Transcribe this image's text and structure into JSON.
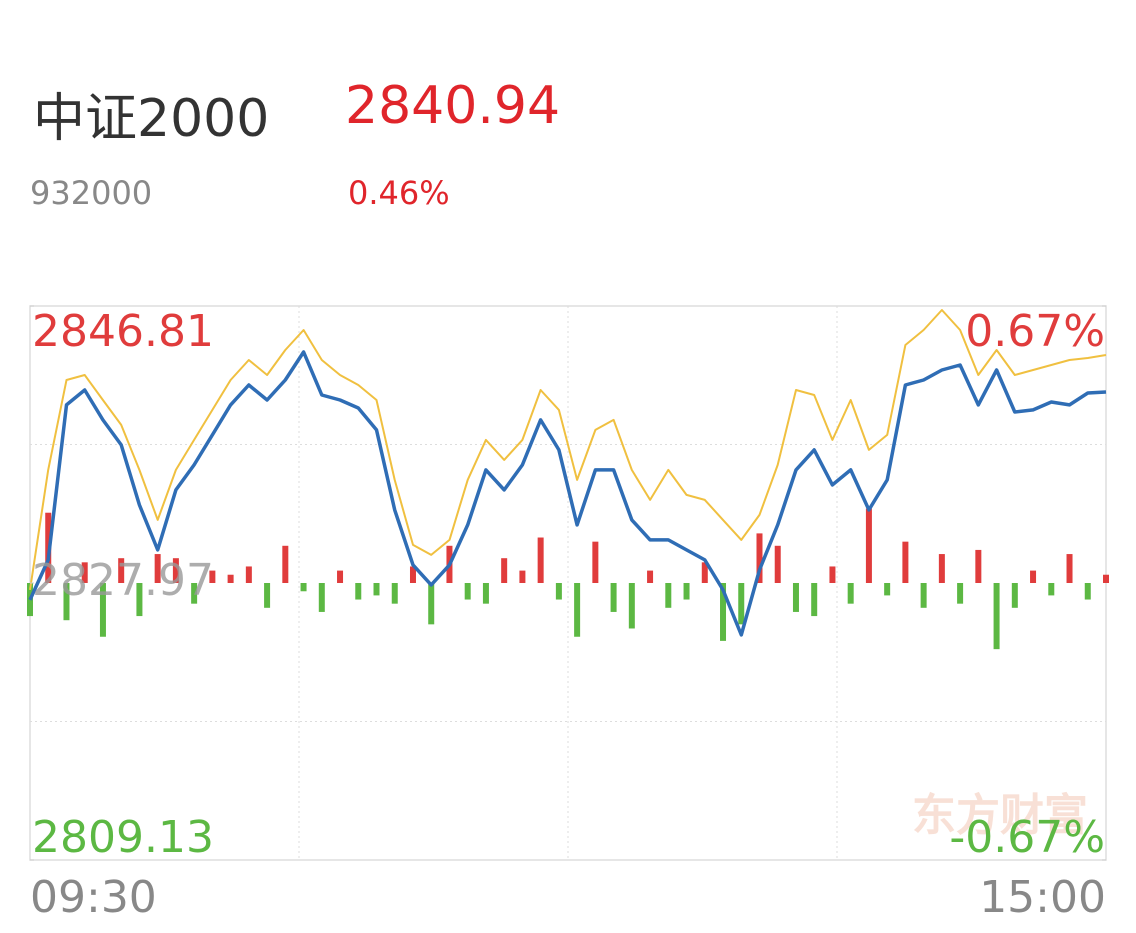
{
  "header": {
    "name": "中证2000",
    "price": "2840.94",
    "code": "932000",
    "change": "0.46%"
  },
  "watermark": "东方财富",
  "chart_data": {
    "type": "line",
    "categories": [
      "09:30",
      null,
      null,
      null,
      null,
      null,
      null,
      null,
      null,
      null,
      null,
      null,
      null,
      null,
      null,
      null,
      null,
      null,
      null,
      null,
      null,
      null,
      null,
      null,
      null,
      null,
      null,
      null,
      null,
      null,
      null,
      null,
      null,
      null,
      null,
      null,
      null,
      null,
      null,
      null,
      null,
      null,
      null,
      null,
      null,
      null,
      null,
      null,
      null,
      null,
      null,
      null,
      null,
      null,
      null,
      null,
      null,
      null,
      null,
      "15:00"
    ],
    "ylim": [
      2809.13,
      2846.81
    ],
    "yticks": [
      2809.13,
      2827.97,
      2846.81
    ],
    "y2lim": [
      -0.67,
      0.67
    ],
    "y2ticks": [
      {
        "value": -0.67,
        "label": "-0.67%"
      },
      {
        "value": 0.67,
        "label": "0.67%"
      }
    ],
    "up_color": "#e03c3c",
    "down_color": "#5cb843",
    "flat_color": "#999999",
    "series": [
      {
        "color": "#f0c040",
        "values": [
          2827.5,
          2835.66,
          2841.78,
          2842.12,
          2840.42,
          2838.72,
          2835.66,
          2832.26,
          2835.66,
          2837.7,
          2839.74,
          2841.78,
          2843.14,
          2842.12,
          2843.82,
          2845.18,
          2843.14,
          2842.12,
          2841.44,
          2840.42,
          2834.98,
          2830.56,
          2829.88,
          2830.9,
          2834.98,
          2837.7,
          2836.34,
          2837.7,
          2841.1,
          2839.74,
          2834.98,
          2838.38,
          2839.06,
          2835.66,
          2833.62,
          2835.66,
          2833.96,
          2833.62,
          2832.26,
          2830.9,
          2832.6,
          2836.0,
          2841.1,
          2840.76,
          2837.7,
          2840.42,
          2837.02,
          2838.04,
          2844.16,
          2845.18,
          2846.54,
          2845.18,
          2842.12,
          2843.82,
          2842.12,
          2842.46,
          2842.8,
          2843.14,
          2843.27,
          2843.48
        ]
      },
      {
        "color": "#2f6db5",
        "values": [
          2826.82,
          2829.54,
          2840.08,
          2841.1,
          2839.06,
          2837.36,
          2833.28,
          2830.22,
          2834.3,
          2836.0,
          2838.04,
          2840.08,
          2841.44,
          2840.42,
          2841.78,
          2843.68,
          2840.76,
          2840.42,
          2839.87,
          2838.38,
          2832.94,
          2829.2,
          2827.84,
          2829.2,
          2831.92,
          2835.66,
          2834.3,
          2836.0,
          2839.06,
          2837.02,
          2831.92,
          2835.66,
          2835.66,
          2832.26,
          2830.9,
          2830.9,
          2830.22,
          2829.54,
          2827.5,
          2824.44,
          2828.86,
          2831.92,
          2835.66,
          2837.02,
          2834.64,
          2835.66,
          2832.94,
          2834.98,
          2841.44,
          2841.78,
          2842.46,
          2842.8,
          2840.08,
          2842.46,
          2839.6,
          2839.74,
          2840.28,
          2840.08,
          2840.89,
          2840.96
        ]
      },
      {
        "type": "bar",
        "axis": "y2",
        "values": [
          -0.08,
          0.17,
          -0.09,
          0.05,
          -0.13,
          0.06,
          -0.08,
          0.07,
          0.06,
          -0.05,
          0.03,
          0.02,
          0.04,
          -0.06,
          0.09,
          -0.02,
          -0.07,
          0.03,
          -0.04,
          -0.03,
          -0.05,
          0.04,
          -0.1,
          0.09,
          -0.04,
          -0.05,
          0.06,
          0.03,
          0.11,
          -0.04,
          -0.13,
          0.1,
          -0.07,
          -0.11,
          0.03,
          -0.06,
          -0.04,
          0.05,
          -0.14,
          -0.1,
          0.12,
          0.09,
          -0.07,
          -0.08,
          0.04,
          -0.05,
          0.18,
          -0.03,
          0.1,
          -0.06,
          0.07,
          -0.05,
          0.08,
          -0.16,
          -0.06,
          0.03,
          -0.03,
          0.07,
          -0.04,
          0.02
        ]
      }
    ]
  }
}
